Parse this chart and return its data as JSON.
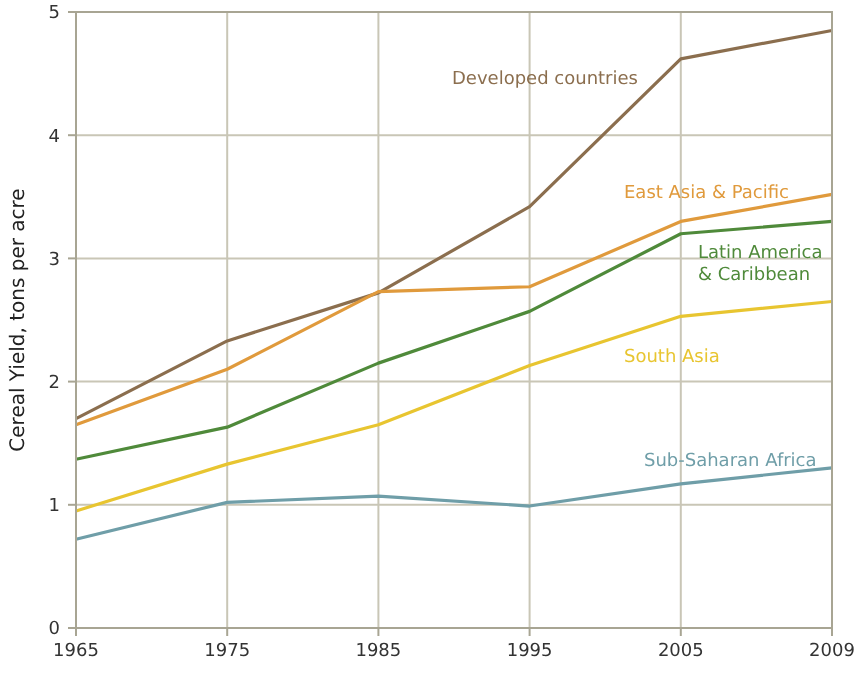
{
  "chart_data": {
    "type": "line",
    "ylabel": "Cereal Yield, tons per acre",
    "categories": [
      "1965",
      "1975",
      "1985",
      "1995",
      "2005",
      "2009"
    ],
    "ylim": [
      0,
      5
    ],
    "yticks": [
      0,
      1,
      2,
      3,
      4,
      5
    ],
    "grid": true,
    "series": [
      {
        "name": "Developed countries",
        "color": "#8b6e4e",
        "values": [
          1.7,
          2.33,
          2.72,
          3.42,
          4.62,
          4.85
        ]
      },
      {
        "name": "East Asia & Pacific",
        "color": "#e09a3c",
        "values": [
          1.65,
          2.1,
          2.73,
          2.77,
          3.3,
          3.52
        ]
      },
      {
        "name": "Latin America & Caribbean",
        "color": "#4f8a3a",
        "values": [
          1.37,
          1.63,
          2.15,
          2.57,
          3.2,
          3.3
        ]
      },
      {
        "name": "South Asia",
        "color": "#e8c530",
        "values": [
          0.95,
          1.33,
          1.65,
          2.13,
          2.53,
          2.65
        ]
      },
      {
        "name": "Sub-Saharan Africa",
        "color": "#6f9ea8",
        "values": [
          0.72,
          1.02,
          1.07,
          0.99,
          1.17,
          1.3
        ]
      }
    ]
  }
}
